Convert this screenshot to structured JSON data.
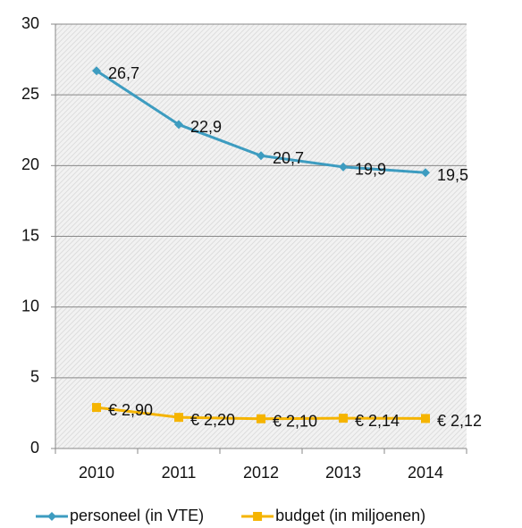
{
  "chart_data": {
    "type": "line",
    "categories": [
      "2010",
      "2011",
      "2012",
      "2013",
      "2014"
    ],
    "series": [
      {
        "name": "personeel (in VTE)",
        "color": "#3d9cc0",
        "marker": "diamond",
        "values": [
          26.7,
          22.9,
          20.7,
          19.9,
          19.5
        ],
        "value_labels": [
          "26,7",
          "22,9",
          "20,7",
          "19,9",
          "19,5"
        ]
      },
      {
        "name": "budget (in miljoenen)",
        "color": "#f5b400",
        "marker": "square",
        "values": [
          2.9,
          2.2,
          2.1,
          2.14,
          2.12
        ],
        "value_labels": [
          "€ 2,90",
          "€ 2,20",
          "€ 2,10",
          "€ 2,14",
          "€ 2,12"
        ]
      }
    ],
    "ylim": [
      0,
      30
    ],
    "yticks": [
      0,
      5,
      10,
      15,
      20,
      25,
      30
    ],
    "grid": true,
    "legend": "bottom"
  }
}
